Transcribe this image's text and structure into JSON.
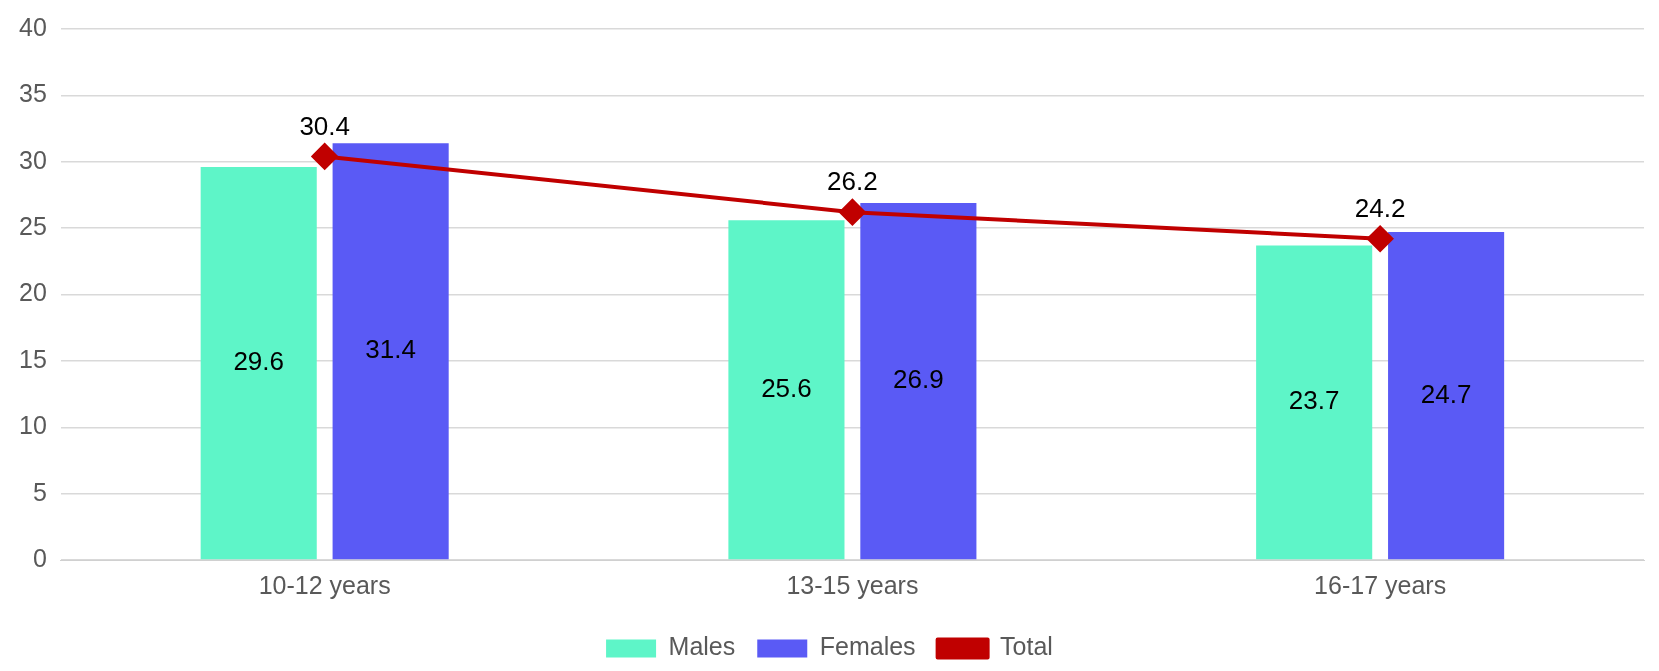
{
  "chart_data": {
    "type": "bar",
    "categories": [
      "10-12 years",
      "13-15 years",
      "16-17 years"
    ],
    "series": [
      {
        "name": "Males",
        "color": "#5ef5c8",
        "values": [
          29.6,
          25.6,
          23.7
        ]
      },
      {
        "name": "Females",
        "color": "#5a5af5",
        "values": [
          31.4,
          26.9,
          24.7
        ]
      },
      {
        "name": "Total",
        "type": "line",
        "color": "#c00000",
        "values": [
          30.4,
          26.2,
          24.2
        ]
      }
    ],
    "ylim": [
      0,
      40
    ],
    "yticks": [
      0,
      5,
      10,
      15,
      20,
      25,
      30,
      35,
      40
    ],
    "grid": "y",
    "legend": "bottom",
    "marker": "diamond",
    "line_style": "solid",
    "data_labels": true
  }
}
